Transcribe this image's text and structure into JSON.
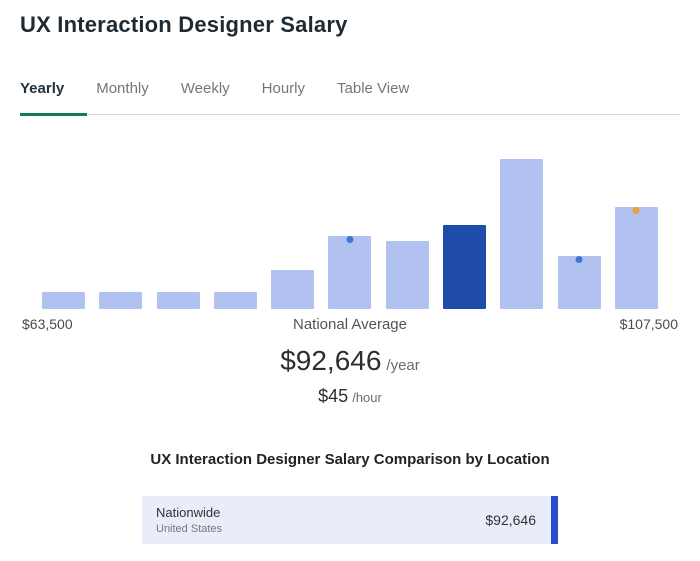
{
  "page": {
    "title": "UX Interaction Designer Salary"
  },
  "tabs": {
    "items": [
      {
        "label": "Yearly",
        "active": true
      },
      {
        "label": "Monthly",
        "active": false
      },
      {
        "label": "Weekly",
        "active": false
      },
      {
        "label": "Hourly",
        "active": false
      },
      {
        "label": "Table View",
        "active": false
      }
    ],
    "active_underline_color": "#0e7c55"
  },
  "chart_data": {
    "type": "bar",
    "description": "Yearly salary distribution histogram",
    "x_min_label": "$63,500",
    "x_max_label": "$107,500",
    "center_label": "National Average",
    "relative_heights": [
      17,
      17,
      17,
      17,
      38,
      72,
      67,
      82,
      147,
      52,
      100
    ],
    "highlight_index": 7,
    "markers": [
      {
        "bar_index": 5,
        "color": "#3d77cf"
      },
      {
        "bar_index": 9,
        "color": "#3d77cf"
      },
      {
        "bar_index": 10,
        "color": "#e8a23c"
      }
    ],
    "colors": {
      "bar": "#b1c1f0",
      "highlight_bar": "#1f4ca8"
    }
  },
  "average": {
    "yearly_amount": "$92,646",
    "yearly_unit": "/year",
    "hourly_amount": "$45",
    "hourly_unit": "/hour"
  },
  "comparison": {
    "heading": "UX Interaction Designer Salary Comparison by Location",
    "rows": [
      {
        "location": "Nationwide",
        "region": "United States",
        "value": "$92,646"
      }
    ],
    "row_bg": "#e9edf9",
    "bar_color": "#2b4bc8"
  }
}
